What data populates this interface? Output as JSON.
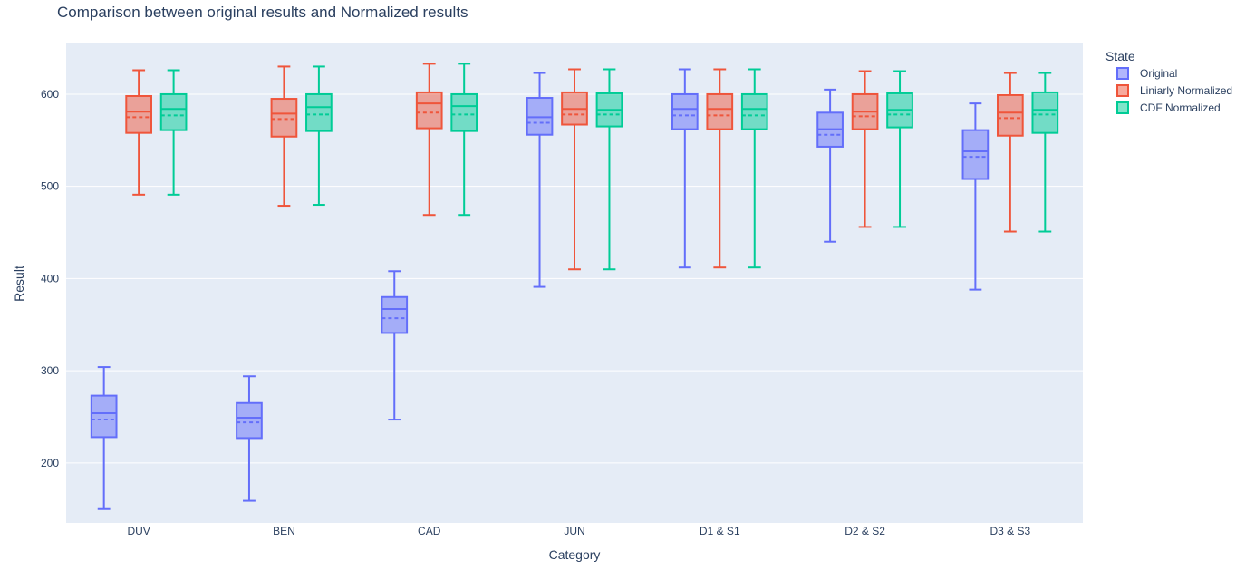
{
  "chart_data": {
    "type": "box",
    "title": "Comparison between original results and Normalized results",
    "xlabel": "Category",
    "ylabel": "Result",
    "ylim": [
      135,
      655
    ],
    "yticks": [
      200,
      300,
      400,
      500,
      600
    ],
    "categories": [
      "DUV",
      "BEN",
      "CAD",
      "JUN",
      "D1 & S1",
      "D2 & S2",
      "D3 & S3"
    ],
    "legend": {
      "title": "State",
      "position": "top-right"
    },
    "series": [
      {
        "name": "Original",
        "color": "#636efa",
        "fill": "rgba(99,110,250,0.5)",
        "boxes": [
          {
            "category": "DUV",
            "min": 150,
            "q1": 228,
            "median": 254,
            "mean": 247,
            "q3": 273,
            "max": 304
          },
          {
            "category": "BEN",
            "min": 159,
            "q1": 227,
            "median": 249,
            "mean": 244,
            "q3": 265,
            "max": 294
          },
          {
            "category": "CAD",
            "min": 247,
            "q1": 341,
            "median": 367,
            "mean": 357,
            "q3": 380,
            "max": 408
          },
          {
            "category": "JUN",
            "min": 391,
            "q1": 556,
            "median": 575,
            "mean": 569,
            "q3": 596,
            "max": 623
          },
          {
            "category": "D1 & S1",
            "min": 412,
            "q1": 562,
            "median": 584,
            "mean": 577,
            "q3": 600,
            "max": 627
          },
          {
            "category": "D2 & S2",
            "min": 440,
            "q1": 543,
            "median": 562,
            "mean": 556,
            "q3": 580,
            "max": 605
          },
          {
            "category": "D3 & S3",
            "min": 388,
            "q1": 508,
            "median": 538,
            "mean": 532,
            "q3": 561,
            "max": 590
          }
        ]
      },
      {
        "name": "Liniarly Normalized",
        "color": "#ef553b",
        "fill": "rgba(239,85,59,0.5)",
        "boxes": [
          {
            "category": "DUV",
            "min": 491,
            "q1": 558,
            "median": 581,
            "mean": 575,
            "q3": 598,
            "max": 626
          },
          {
            "category": "BEN",
            "min": 479,
            "q1": 554,
            "median": 579,
            "mean": 573,
            "q3": 595,
            "max": 630
          },
          {
            "category": "CAD",
            "min": 469,
            "q1": 563,
            "median": 590,
            "mean": 580,
            "q3": 602,
            "max": 633
          },
          {
            "category": "JUN",
            "min": 410,
            "q1": 567,
            "median": 584,
            "mean": 578,
            "q3": 602,
            "max": 627
          },
          {
            "category": "D1 & S1",
            "min": 412,
            "q1": 562,
            "median": 584,
            "mean": 577,
            "q3": 600,
            "max": 627
          },
          {
            "category": "D2 & S2",
            "min": 456,
            "q1": 562,
            "median": 581,
            "mean": 576,
            "q3": 600,
            "max": 625
          },
          {
            "category": "D3 & S3",
            "min": 451,
            "q1": 555,
            "median": 580,
            "mean": 574,
            "q3": 599,
            "max": 623
          }
        ]
      },
      {
        "name": "CDF Normalized",
        "color": "#00cc96",
        "fill": "rgba(0,204,150,0.5)",
        "boxes": [
          {
            "category": "DUV",
            "min": 491,
            "q1": 561,
            "median": 584,
            "mean": 577,
            "q3": 600,
            "max": 626
          },
          {
            "category": "BEN",
            "min": 480,
            "q1": 560,
            "median": 586,
            "mean": 578,
            "q3": 600,
            "max": 630
          },
          {
            "category": "CAD",
            "min": 469,
            "q1": 560,
            "median": 587,
            "mean": 578,
            "q3": 600,
            "max": 633
          },
          {
            "category": "JUN",
            "min": 410,
            "q1": 565,
            "median": 583,
            "mean": 578,
            "q3": 601,
            "max": 627
          },
          {
            "category": "D1 & S1",
            "min": 412,
            "q1": 562,
            "median": 584,
            "mean": 577,
            "q3": 600,
            "max": 627
          },
          {
            "category": "D2 & S2",
            "min": 456,
            "q1": 564,
            "median": 583,
            "mean": 578,
            "q3": 601,
            "max": 625
          },
          {
            "category": "D3 & S3",
            "min": 451,
            "q1": 558,
            "median": 583,
            "mean": 578,
            "q3": 602,
            "max": 623
          }
        ]
      }
    ]
  }
}
